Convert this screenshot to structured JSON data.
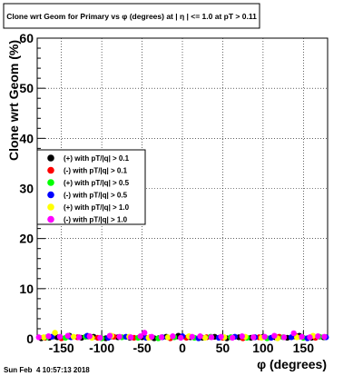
{
  "chart_data": {
    "type": "scatter",
    "title": "Clone wrt Geom for Primary vs φ (degrees) at | η | <= 1.0 at pT > 0.11",
    "xlabel": "φ (degrees)",
    "ylabel": "Clone wrt Geom (%)",
    "xlim": [
      -180,
      180
    ],
    "ylim": [
      0,
      60
    ],
    "xticks": [
      -150,
      -100,
      -50,
      0,
      50,
      100,
      150
    ],
    "yticks": [
      0,
      10,
      20,
      30,
      40,
      50,
      60
    ],
    "grid": true,
    "legend_position": "left",
    "series": [
      {
        "name": "(+) with pT/|q| > 0.1",
        "color": "#000000",
        "x": [
          -175,
          -165,
          -155,
          -140,
          -125,
          -110,
          -95,
          -80,
          -65,
          -50,
          -35,
          -20,
          -5,
          10,
          25,
          40,
          55,
          70,
          85,
          100,
          115,
          130,
          145,
          160,
          175
        ],
        "y": [
          0.1,
          0.2,
          0.3,
          0.6,
          0.2,
          0.4,
          0.1,
          0.3,
          0.2,
          0.3,
          0.1,
          0.4,
          0.6,
          0.3,
          0.2,
          0.4,
          0.1,
          0.3,
          0.2,
          0.4,
          0.3,
          0.2,
          0.6,
          0.2,
          0.3
        ]
      },
      {
        "name": "(-) with pT/|q| > 0.1",
        "color": "#ff0000",
        "x": [
          -170,
          -150,
          -130,
          -105,
          -85,
          -60,
          -40,
          -15,
          5,
          30,
          50,
          75,
          95,
          120,
          140,
          165
        ],
        "y": [
          0.2,
          0.1,
          0.3,
          0.2,
          0.4,
          0.2,
          0.3,
          0.1,
          0.2,
          0.3,
          0.2,
          0.1,
          0.3,
          0.4,
          0.6,
          0.2
        ]
      },
      {
        "name": "(+) with pT/|q| > 0.5",
        "color": "#00ff00",
        "x": [
          -168,
          -145,
          -120,
          -100,
          -75,
          -55,
          -30,
          -10,
          15,
          35,
          60,
          80,
          105,
          125,
          150,
          170
        ],
        "y": [
          0.3,
          0.2,
          0.4,
          0.1,
          0.3,
          0.2,
          0.1,
          0.3,
          0.2,
          0.4,
          0.3,
          0.2,
          0.1,
          0.3,
          0.2,
          0.4
        ]
      },
      {
        "name": "(-) with pT/|q| > 0.5",
        "color": "#0000ff",
        "x": [
          -162,
          -138,
          -118,
          -92,
          -70,
          -45,
          -25,
          0,
          20,
          45,
          65,
          90,
          110,
          135,
          155,
          178
        ],
        "y": [
          0.4,
          0.3,
          0.6,
          0.2,
          0.4,
          0.2,
          0.3,
          0.5,
          0.1,
          0.2,
          0.4,
          0.3,
          0.2,
          0.3,
          0.1,
          0.3
        ]
      },
      {
        "name": "(+) with pT/|q| > 1.0",
        "color": "#ffff00",
        "x": [
          -172,
          -158,
          -135,
          -112,
          -88,
          -66,
          -42,
          -18,
          8,
          28,
          52,
          78,
          98,
          118,
          142,
          162
        ],
        "y": [
          0.3,
          1.2,
          0.4,
          0.2,
          0.6,
          0.4,
          0.2,
          0.3,
          0.5,
          0.2,
          0.3,
          0.4,
          0.2,
          0.1,
          0.3,
          0.6
        ]
      },
      {
        "name": "(-) with pT/|q| > 1.0",
        "color": "#ff00ff",
        "x": [
          -178,
          -166,
          -152,
          -142,
          -128,
          -115,
          -102,
          -90,
          -78,
          -64,
          -52,
          -47,
          -38,
          -26,
          -12,
          -2,
          12,
          22,
          36,
          48,
          62,
          74,
          88,
          102,
          114,
          126,
          138,
          148,
          158,
          168,
          176
        ],
        "y": [
          0.3,
          0.5,
          0.4,
          0.6,
          0.3,
          0.5,
          0.2,
          0.6,
          0.4,
          0.3,
          0.5,
          1.2,
          0.4,
          0.3,
          0.5,
          0.2,
          0.4,
          0.5,
          0.3,
          0.4,
          0.2,
          0.5,
          0.3,
          0.4,
          0.6,
          0.3,
          1.1,
          0.4,
          0.3,
          0.5,
          0.4
        ]
      }
    ]
  },
  "footer": {
    "timestamp": "Sun Feb  4 10:57:13 2018"
  }
}
